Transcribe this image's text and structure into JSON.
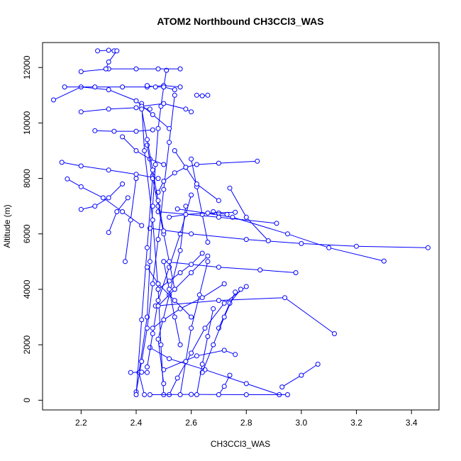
{
  "chart_data": {
    "type": "line",
    "title": "ATOM2 Northbound CH3CCl3_WAS",
    "xlabel": "CH3CCl3_WAS",
    "ylabel": "Altitude (m)",
    "xlim": [
      2.06,
      3.5
    ],
    "ylim": [
      -350,
      12900
    ],
    "xticks": [
      "2.2",
      "2.4",
      "2.6",
      "2.8",
      "3.0",
      "3.2",
      "3.4"
    ],
    "yticks": [
      "0",
      "2000",
      "4000",
      "6000",
      "8000",
      "10000",
      "12000"
    ],
    "grid": false,
    "legend": "none",
    "colors": {
      "series": "#0000ff",
      "axis": "#000000"
    },
    "series": [
      {
        "x": [
          2.43,
          2.41,
          2.44,
          2.45,
          2.46,
          2.47,
          2.48,
          2.49,
          2.5,
          2.51
        ],
        "y": [
          200,
          1000,
          3000,
          5000,
          7000,
          8500,
          9800,
          10600,
          11300,
          11900
        ]
      },
      {
        "x": [
          2.4,
          2.42,
          2.44,
          2.46,
          2.48,
          2.5,
          2.52,
          2.54
        ],
        "y": [
          300,
          1400,
          2600,
          4200,
          5800,
          7600,
          9300,
          11000
        ]
      },
      {
        "x": [
          2.52,
          2.55,
          2.6,
          2.65,
          2.72,
          2.8
        ],
        "y": [
          200,
          800,
          1700,
          2600,
          3500,
          4100
        ]
      },
      {
        "x": [
          2.5,
          2.49,
          2.48,
          2.46,
          2.43,
          2.42
        ],
        "y": [
          200,
          2000,
          4000,
          6500,
          9000,
          10700
        ]
      },
      {
        "x": [
          2.92,
          2.8,
          2.65,
          2.52,
          2.45
        ],
        "y": [
          200,
          600,
          1100,
          1500,
          1900
        ]
      },
      {
        "x": [
          2.44,
          2.46,
          2.48,
          2.52,
          2.56,
          2.6
        ],
        "y": [
          1200,
          2400,
          3600,
          4800,
          6000,
          7400
        ]
      },
      {
        "x": [
          2.48,
          2.5,
          2.54,
          2.58,
          2.62,
          2.7,
          2.84
        ],
        "y": [
          7500,
          7900,
          8200,
          8400,
          8500,
          8550,
          8620
        ]
      },
      {
        "x": [
          2.13,
          2.2,
          2.3,
          2.4,
          2.48
        ],
        "y": [
          8580,
          8450,
          8300,
          8150,
          8000
        ]
      },
      {
        "x": [
          2.15,
          2.2,
          2.28,
          2.35,
          2.42
        ],
        "y": [
          7980,
          7700,
          7300,
          6800,
          6300
        ]
      },
      {
        "x": [
          2.2,
          2.25,
          2.3,
          2.35
        ],
        "y": [
          6880,
          7000,
          7300,
          7800
        ]
      },
      {
        "x": [
          2.45,
          2.6,
          2.8,
          3.0,
          3.2,
          3.46
        ],
        "y": [
          6200,
          6000,
          5800,
          5650,
          5550,
          5500
        ]
      },
      {
        "x": [
          2.55,
          2.75,
          2.95,
          3.1,
          3.3
        ],
        "y": [
          6900,
          6600,
          6000,
          5500,
          5020
        ]
      },
      {
        "x": [
          2.5,
          2.7,
          2.85,
          2.98
        ],
        "y": [
          5000,
          4800,
          4700,
          4600
        ]
      },
      {
        "x": [
          2.48,
          2.7,
          2.91
        ],
        "y": [
          6800,
          6600,
          6380
        ]
      },
      {
        "x": [
          2.74,
          2.8,
          2.88
        ],
        "y": [
          7650,
          6600,
          5750
        ]
      },
      {
        "x": [
          2.47,
          2.7,
          2.94,
          3.12
        ],
        "y": [
          3400,
          3600,
          3700,
          2400
        ]
      },
      {
        "x": [
          2.93,
          3.0,
          3.06
        ],
        "y": [
          480,
          900,
          1300
        ]
      },
      {
        "x": [
          2.45,
          2.6,
          2.8,
          2.95
        ],
        "y": [
          200,
          210,
          200,
          200
        ]
      },
      {
        "x": [
          2.5,
          2.62,
          2.72,
          2.76
        ],
        "y": [
          1100,
          1600,
          1800,
          1650
        ]
      },
      {
        "x": [
          2.1,
          2.2,
          2.3,
          2.4,
          2.46,
          2.52
        ],
        "y": [
          10830,
          11300,
          11200,
          10800,
          10300,
          9800
        ]
      },
      {
        "x": [
          2.14,
          2.25,
          2.35,
          2.44,
          2.5,
          2.56
        ],
        "y": [
          11300,
          11300,
          11300,
          11300,
          11350,
          11300
        ]
      },
      {
        "x": [
          2.2,
          2.3,
          2.4,
          2.48,
          2.56
        ],
        "y": [
          11850,
          11950,
          11950,
          11950,
          11950
        ]
      },
      {
        "x": [
          2.26,
          2.3,
          2.32
        ],
        "y": [
          12600,
          12620,
          12600
        ]
      },
      {
        "x": [
          2.29,
          2.3,
          2.33
        ],
        "y": [
          11950,
          12200,
          12600
        ]
      },
      {
        "x": [
          2.2,
          2.3,
          2.4,
          2.45
        ],
        "y": [
          10400,
          10500,
          10550,
          10500
        ]
      },
      {
        "x": [
          2.25,
          2.32,
          2.4,
          2.46
        ],
        "y": [
          9720,
          9700,
          9700,
          9750
        ]
      },
      {
        "x": [
          2.42,
          2.5,
          2.58,
          2.6
        ],
        "y": [
          10600,
          10700,
          10500,
          10400
        ]
      },
      {
        "x": [
          2.62,
          2.64,
          2.66
        ],
        "y": [
          11000,
          10980,
          11000
        ]
      },
      {
        "x": [
          2.6,
          2.62,
          2.64,
          2.66
        ],
        "y": [
          8700,
          7700,
          6700,
          5700
        ]
      },
      {
        "x": [
          2.56,
          2.58,
          2.6,
          2.63,
          2.66
        ],
        "y": [
          200,
          1400,
          2600,
          3800,
          5000
        ]
      },
      {
        "x": [
          2.5,
          2.48,
          2.52,
          2.56,
          2.58
        ],
        "y": [
          600,
          2200,
          3800,
          5400,
          7000
        ]
      },
      {
        "x": [
          2.4,
          2.42,
          2.44,
          2.46
        ],
        "y": [
          200,
          2900,
          5500,
          8100
        ]
      },
      {
        "x": [
          2.38,
          2.42,
          2.44
        ],
        "y": [
          1000,
          1010,
          1000
        ]
      },
      {
        "x": [
          2.36,
          2.38,
          2.4
        ],
        "y": [
          5000,
          6500,
          8000
        ]
      },
      {
        "x": [
          2.3,
          2.33,
          2.37
        ],
        "y": [
          6050,
          6800,
          7300
        ]
      },
      {
        "x": [
          2.68,
          2.7,
          2.73
        ],
        "y": [
          6800,
          6750,
          6700
        ]
      },
      {
        "x": [
          2.7,
          2.74,
          2.78
        ],
        "y": [
          2600,
          3500,
          4000
        ]
      },
      {
        "x": [
          2.64,
          2.68,
          2.72,
          2.76
        ],
        "y": [
          1000,
          2000,
          3000,
          3900
        ]
      },
      {
        "x": [
          2.54,
          2.58,
          2.62,
          2.7
        ],
        "y": [
          9000,
          8400,
          7800,
          7200
        ]
      },
      {
        "x": [
          2.44,
          2.47,
          2.5,
          2.54
        ],
        "y": [
          11350,
          11300,
          11300,
          11200
        ]
      },
      {
        "x": [
          2.35,
          2.4,
          2.45,
          2.5
        ],
        "y": [
          9500,
          9000,
          8700,
          8500
        ]
      },
      {
        "x": [
          2.48,
          2.52,
          2.56,
          2.6,
          2.64
        ],
        "y": [
          4000,
          4300,
          4600,
          4900,
          5300
        ]
      },
      {
        "x": [
          2.46,
          2.5,
          2.56,
          2.64,
          2.72
        ],
        "y": [
          2600,
          2900,
          3300,
          3700,
          4200
        ]
      },
      {
        "x": [
          2.44,
          2.48,
          2.54,
          2.6
        ],
        "y": [
          4800,
          4200,
          3600,
          3000
        ]
      },
      {
        "x": [
          2.52,
          2.58,
          2.66,
          2.76
        ],
        "y": [
          6600,
          6700,
          6750,
          6780
        ]
      },
      {
        "x": [
          2.7,
          2.72,
          2.74
        ],
        "y": [
          200,
          500,
          900
        ]
      },
      {
        "x": [
          2.62,
          2.64,
          2.66,
          2.68
        ],
        "y": [
          200,
          1300,
          2300,
          3300
        ]
      },
      {
        "x": [
          2.44,
          2.46,
          2.48,
          2.5,
          2.52,
          2.54
        ],
        "y": [
          9200,
          8000,
          7000,
          6000,
          5000,
          4000
        ]
      },
      {
        "x": [
          2.42,
          2.44,
          2.46,
          2.48,
          2.5
        ],
        "y": [
          10500,
          9400,
          8300,
          7200,
          6100
        ]
      },
      {
        "x": [
          2.56,
          2.54,
          2.52,
          2.5
        ],
        "y": [
          2000,
          3000,
          4000,
          5000
        ]
      },
      {
        "x": [
          2.66,
          2.6,
          2.54,
          2.48
        ],
        "y": [
          5200,
          4600,
          4000,
          3400
        ]
      }
    ]
  }
}
